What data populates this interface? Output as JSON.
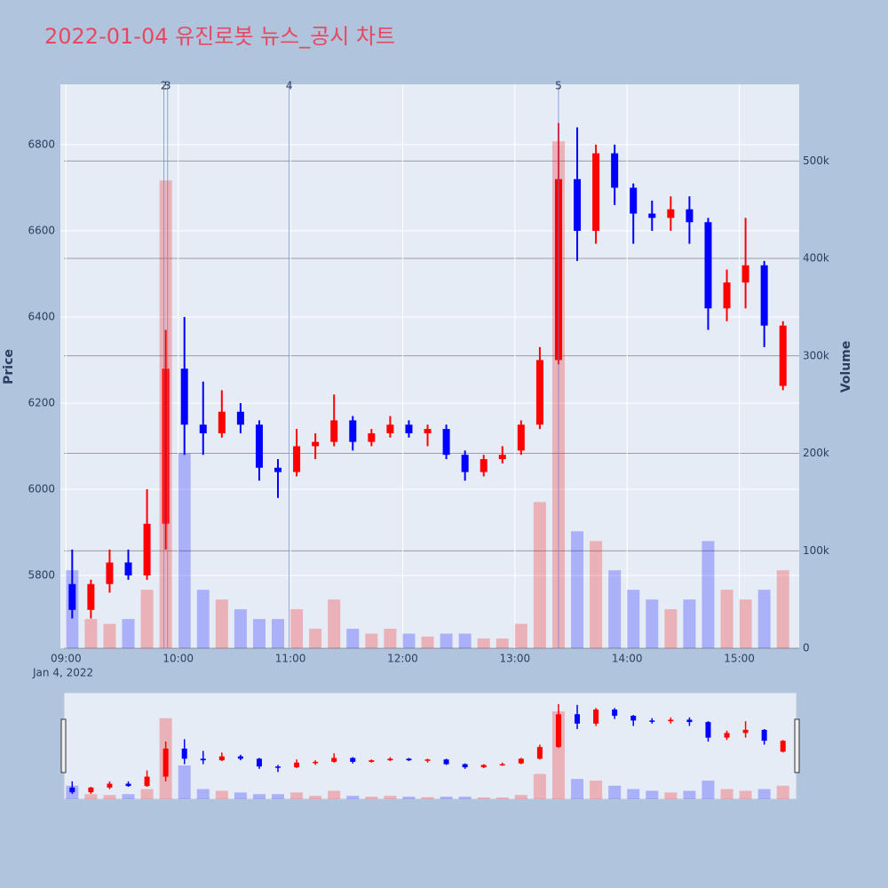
{
  "chart_data": {
    "type": "candlestick",
    "title": "2022-01-04 유진로봇 뉴스_공시 차트",
    "x_date_label": "Jan 4, 2022",
    "y_label": "Price",
    "y2_label": "Volume",
    "x": [
      "2022-01-04 09:00",
      "2022-01-04 09:10",
      "2022-01-04 09:20",
      "2022-01-04 09:30",
      "2022-01-04 09:40",
      "2022-01-04 09:50",
      "2022-01-04 10:00",
      "2022-01-04 10:10",
      "2022-01-04 10:20",
      "2022-01-04 10:30",
      "2022-01-04 10:40",
      "2022-01-04 10:50",
      "2022-01-04 11:00",
      "2022-01-04 11:10",
      "2022-01-04 11:20",
      "2022-01-04 11:30",
      "2022-01-04 11:40",
      "2022-01-04 11:50",
      "2022-01-04 12:00",
      "2022-01-04 12:10",
      "2022-01-04 12:20",
      "2022-01-04 12:30",
      "2022-01-04 12:40",
      "2022-01-04 12:50",
      "2022-01-04 13:00",
      "2022-01-04 13:10",
      "2022-01-04 13:20",
      "2022-01-04 13:30",
      "2022-01-04 13:40",
      "2022-01-04 13:50",
      "2022-01-04 14:00",
      "2022-01-04 14:10",
      "2022-01-04 14:20",
      "2022-01-04 14:30",
      "2022-01-04 14:40",
      "2022-01-04 14:50",
      "2022-01-04 15:00",
      "2022-01-04 15:10",
      "2022-01-04 15:20"
    ],
    "open": [
      5780,
      5720,
      5780,
      5830,
      5800,
      5920,
      6280,
      6150,
      6130,
      6180,
      6150,
      6050,
      6040,
      6100,
      6110,
      6160,
      6110,
      6130,
      6150,
      6130,
      6140,
      6080,
      6040,
      6070,
      6090,
      6150,
      6300,
      6720,
      6600,
      6780,
      6700,
      6640,
      6630,
      6650,
      6620,
      6420,
      6480,
      6520,
      6240
    ],
    "high": [
      5860,
      5790,
      5860,
      5860,
      6000,
      6370,
      6400,
      6250,
      6230,
      6200,
      6160,
      6070,
      6140,
      6130,
      6220,
      6170,
      6140,
      6170,
      6160,
      6150,
      6150,
      6090,
      6080,
      6100,
      6160,
      6330,
      6850,
      6840,
      6800,
      6800,
      6710,
      6670,
      6680,
      6680,
      6630,
      6510,
      6630,
      6530,
      6390
    ],
    "low": [
      5700,
      5700,
      5760,
      5790,
      5790,
      5860,
      6080,
      6080,
      6120,
      6130,
      6020,
      5980,
      6030,
      6070,
      6100,
      6090,
      6100,
      6120,
      6120,
      6100,
      6070,
      6020,
      6030,
      6060,
      6080,
      6140,
      6290,
      6530,
      6570,
      6660,
      6570,
      6600,
      6600,
      6570,
      6370,
      6390,
      6420,
      6330,
      6230
    ],
    "close": [
      5720,
      5780,
      5830,
      5800,
      5920,
      6280,
      6150,
      6130,
      6180,
      6150,
      6050,
      6040,
      6100,
      6110,
      6160,
      6110,
      6130,
      6150,
      6130,
      6140,
      6080,
      6040,
      6070,
      6080,
      6150,
      6300,
      6720,
      6600,
      6780,
      6700,
      6640,
      6630,
      6650,
      6620,
      6420,
      6480,
      6520,
      6380,
      6380
    ],
    "volume": [
      80000,
      30000,
      25000,
      30000,
      60000,
      480000,
      200000,
      60000,
      50000,
      40000,
      30000,
      30000,
      40000,
      20000,
      50000,
      20000,
      15000,
      20000,
      15000,
      12000,
      15000,
      15000,
      10000,
      10000,
      25000,
      150000,
      520000,
      120000,
      110000,
      80000,
      60000,
      50000,
      40000,
      50000,
      110000,
      60000,
      50000,
      60000,
      80000
    ],
    "up_color": "#ff0000",
    "down_color": "#0000ff",
    "xlim": [
      "2022-01-04 08:57",
      "2022-01-04 15:32"
    ],
    "xticks": [
      {
        "value": "2022-01-04 09:00",
        "label": "09:00"
      },
      {
        "value": "2022-01-04 10:00",
        "label": "10:00"
      },
      {
        "value": "2022-01-04 11:00",
        "label": "11:00"
      },
      {
        "value": "2022-01-04 12:00",
        "label": "12:00"
      },
      {
        "value": "2022-01-04 13:00",
        "label": "13:00"
      },
      {
        "value": "2022-01-04 14:00",
        "label": "14:00"
      },
      {
        "value": "2022-01-04 15:00",
        "label": "15:00"
      }
    ],
    "ylim": [
      5631,
      6940
    ],
    "yticks": [
      5800,
      6000,
      6200,
      6400,
      6600,
      6800
    ],
    "y2lim": [
      0,
      578600
    ],
    "y2ticks": [
      0,
      {
        "value": 100000,
        "label": "100k"
      },
      {
        "value": 200000,
        "label": "200k"
      },
      {
        "value": 300000,
        "label": "300k"
      },
      {
        "value": 400000,
        "label": "400k"
      },
      {
        "value": 500000,
        "label": "500k"
      }
    ],
    "annotations": [
      {
        "x": "2022-01-04 09:49",
        "text": "2"
      },
      {
        "x": "2022-01-04 09:51",
        "text": "3"
      },
      {
        "x": "2022-01-04 10:56",
        "text": "4"
      },
      {
        "x": "2022-01-04 13:20",
        "text": "5"
      }
    ],
    "rangeslider": true
  }
}
